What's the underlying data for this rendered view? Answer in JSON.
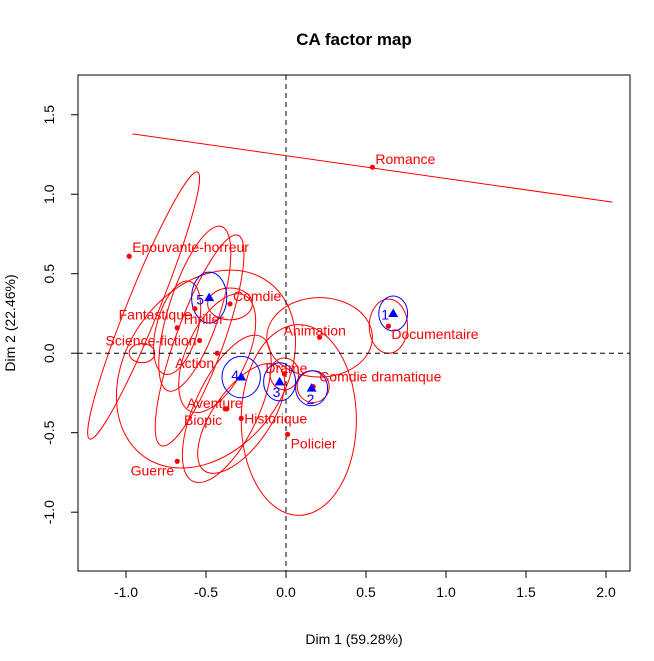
{
  "chart_data": {
    "type": "scatter",
    "title": "CA factor map",
    "xlabel": "Dim 1 (59.28%)",
    "ylabel": "Dim 2 (22.46%)",
    "xlim": [
      -1.3,
      2.15
    ],
    "ylim": [
      -1.37,
      1.75
    ],
    "xticks": [
      -1.0,
      -0.5,
      0.0,
      0.5,
      1.0,
      1.5,
      2.0
    ],
    "xtick_labels": [
      "-1.0",
      "-0.5",
      "0.0",
      "0.5",
      "1.0",
      "1.5",
      "2.0"
    ],
    "yticks": [
      -1.0,
      -0.5,
      0.0,
      0.5,
      1.0,
      1.5
    ],
    "ytick_labels": [
      "-1.0",
      "-0.5",
      "0.0",
      "0.5",
      "1.0",
      "1.5"
    ],
    "reference_lines": {
      "x": 0,
      "y": 0,
      "style": "dashed"
    },
    "colors": {
      "columns": "#ff0000",
      "rows": "#0000ff"
    },
    "series": [
      {
        "name": "",
        "marker": "circle",
        "color": "#ff0000",
        "points": [
          {
            "label": "Romance",
            "x": 0.54,
            "y": 1.17
          },
          {
            "label": "Epouvante-horreur",
            "x": -0.98,
            "y": 0.61
          },
          {
            "label": "Fantastique",
            "x": -0.57,
            "y": 0.28
          },
          {
            "label": "Comdie",
            "x": -0.35,
            "y": 0.31
          },
          {
            "label": "Thriller",
            "x": -0.68,
            "y": 0.16
          },
          {
            "label": "Science-fiction",
            "x": -0.54,
            "y": 0.08
          },
          {
            "label": "Animation",
            "x": 0.21,
            "y": 0.1
          },
          {
            "label": "Documentaire",
            "x": 0.64,
            "y": 0.17
          },
          {
            "label": "Action",
            "x": -0.43,
            "y": 0.0
          },
          {
            "label": "Drame",
            "x": -0.01,
            "y": -0.13
          },
          {
            "label": "Comdie dramatique",
            "x": 0.17,
            "y": -0.21
          },
          {
            "label": "Aventure",
            "x": -0.37,
            "y": -0.35
          },
          {
            "label": "Biopic",
            "x": -0.38,
            "y": -0.35
          },
          {
            "label": "Historique",
            "x": -0.28,
            "y": -0.41
          },
          {
            "label": "Policier",
            "x": 0.01,
            "y": -0.51
          },
          {
            "label": "Guerre",
            "x": -0.68,
            "y": -0.68
          }
        ]
      },
      {
        "name": "",
        "marker": "triangle",
        "color": "#0000ff",
        "points": [
          {
            "label": "1",
            "x": 0.67,
            "y": 0.25
          },
          {
            "label": "2",
            "x": 0.16,
            "y": -0.22
          },
          {
            "label": "3",
            "x": -0.04,
            "y": -0.18
          },
          {
            "label": "4",
            "x": -0.28,
            "y": -0.15
          },
          {
            "label": "5",
            "x": -0.48,
            "y": 0.35
          }
        ]
      }
    ],
    "line": {
      "x1": -0.96,
      "y1": 1.38,
      "x2": 2.04,
      "y2": 0.95,
      "color": "#ff0000"
    },
    "confidence_ellipses": [
      {
        "for": "Romance",
        "type": "degenerate-line"
      },
      {
        "for": "Epouvante-horreur",
        "cx": -0.89,
        "cy": 0.3,
        "rx": 0.9,
        "ry": 0.1,
        "angle_deg": -68
      },
      {
        "for": "Fantastique",
        "cx": -0.57,
        "cy": 0.28,
        "rx": 0.54,
        "ry": 0.16,
        "angle_deg": -72
      },
      {
        "for": "Comdie",
        "cx": -0.35,
        "cy": 0.31,
        "rx": 0.14,
        "ry": 0.1,
        "angle_deg": 0
      },
      {
        "for": "Thriller",
        "cx": -0.68,
        "cy": 0.16,
        "rx": 0.3,
        "ry": 0.13,
        "angle_deg": -75
      },
      {
        "for": "Science-fiction",
        "cx": -0.54,
        "cy": 0.08,
        "rx": 0.7,
        "ry": 0.15,
        "angle_deg": -70
      },
      {
        "for": "Animation",
        "cx": 0.21,
        "cy": 0.1,
        "rx": 0.33,
        "ry": 0.25,
        "angle_deg": 0
      },
      {
        "for": "Documentaire",
        "cx": 0.64,
        "cy": 0.17,
        "rx": 0.12,
        "ry": 0.17,
        "angle_deg": 0
      },
      {
        "for": "Action",
        "cx": -0.43,
        "cy": 0.0,
        "rx": 0.4,
        "ry": 0.19,
        "angle_deg": -65
      },
      {
        "for": "Drame",
        "cx": -0.01,
        "cy": -0.13,
        "rx": 0.09,
        "ry": 0.1,
        "angle_deg": 0
      },
      {
        "for": "Comdie dramatique",
        "cx": 0.17,
        "cy": -0.21,
        "rx": 0.1,
        "ry": 0.1,
        "angle_deg": 0
      },
      {
        "for": "Aventure",
        "cx": -0.37,
        "cy": -0.35,
        "rx": 0.5,
        "ry": 0.2,
        "angle_deg": -65
      },
      {
        "for": "Biopic",
        "cx": -0.5,
        "cy": -0.1,
        "rx": 0.67,
        "ry": 0.5,
        "angle_deg": -55
      },
      {
        "for": "Historique",
        "cx": -0.28,
        "cy": -0.41,
        "rx": 0.4,
        "ry": 0.18,
        "angle_deg": -55
      },
      {
        "for": "Policier",
        "cx": 0.08,
        "cy": -0.42,
        "rx": 0.36,
        "ry": 0.6,
        "angle_deg": 0
      },
      {
        "for": "Guerre",
        "cx": -0.9,
        "cy": 0.0,
        "rx": 0.08,
        "ry": 0.06,
        "angle_deg": 0
      },
      {
        "for": "1",
        "cx": 0.67,
        "cy": 0.25,
        "rx": 0.09,
        "ry": 0.11,
        "angle_deg": 0
      },
      {
        "for": "2",
        "cx": 0.16,
        "cy": -0.22,
        "rx": 0.1,
        "ry": 0.11,
        "angle_deg": 0
      },
      {
        "for": "3",
        "cx": -0.04,
        "cy": -0.18,
        "rx": 0.1,
        "ry": 0.12,
        "angle_deg": 0
      },
      {
        "for": "4",
        "cx": -0.28,
        "cy": -0.15,
        "rx": 0.12,
        "ry": 0.13,
        "angle_deg": 0
      },
      {
        "for": "5",
        "cx": -0.48,
        "cy": 0.35,
        "rx": 0.11,
        "ry": 0.16,
        "angle_deg": 0
      }
    ]
  }
}
